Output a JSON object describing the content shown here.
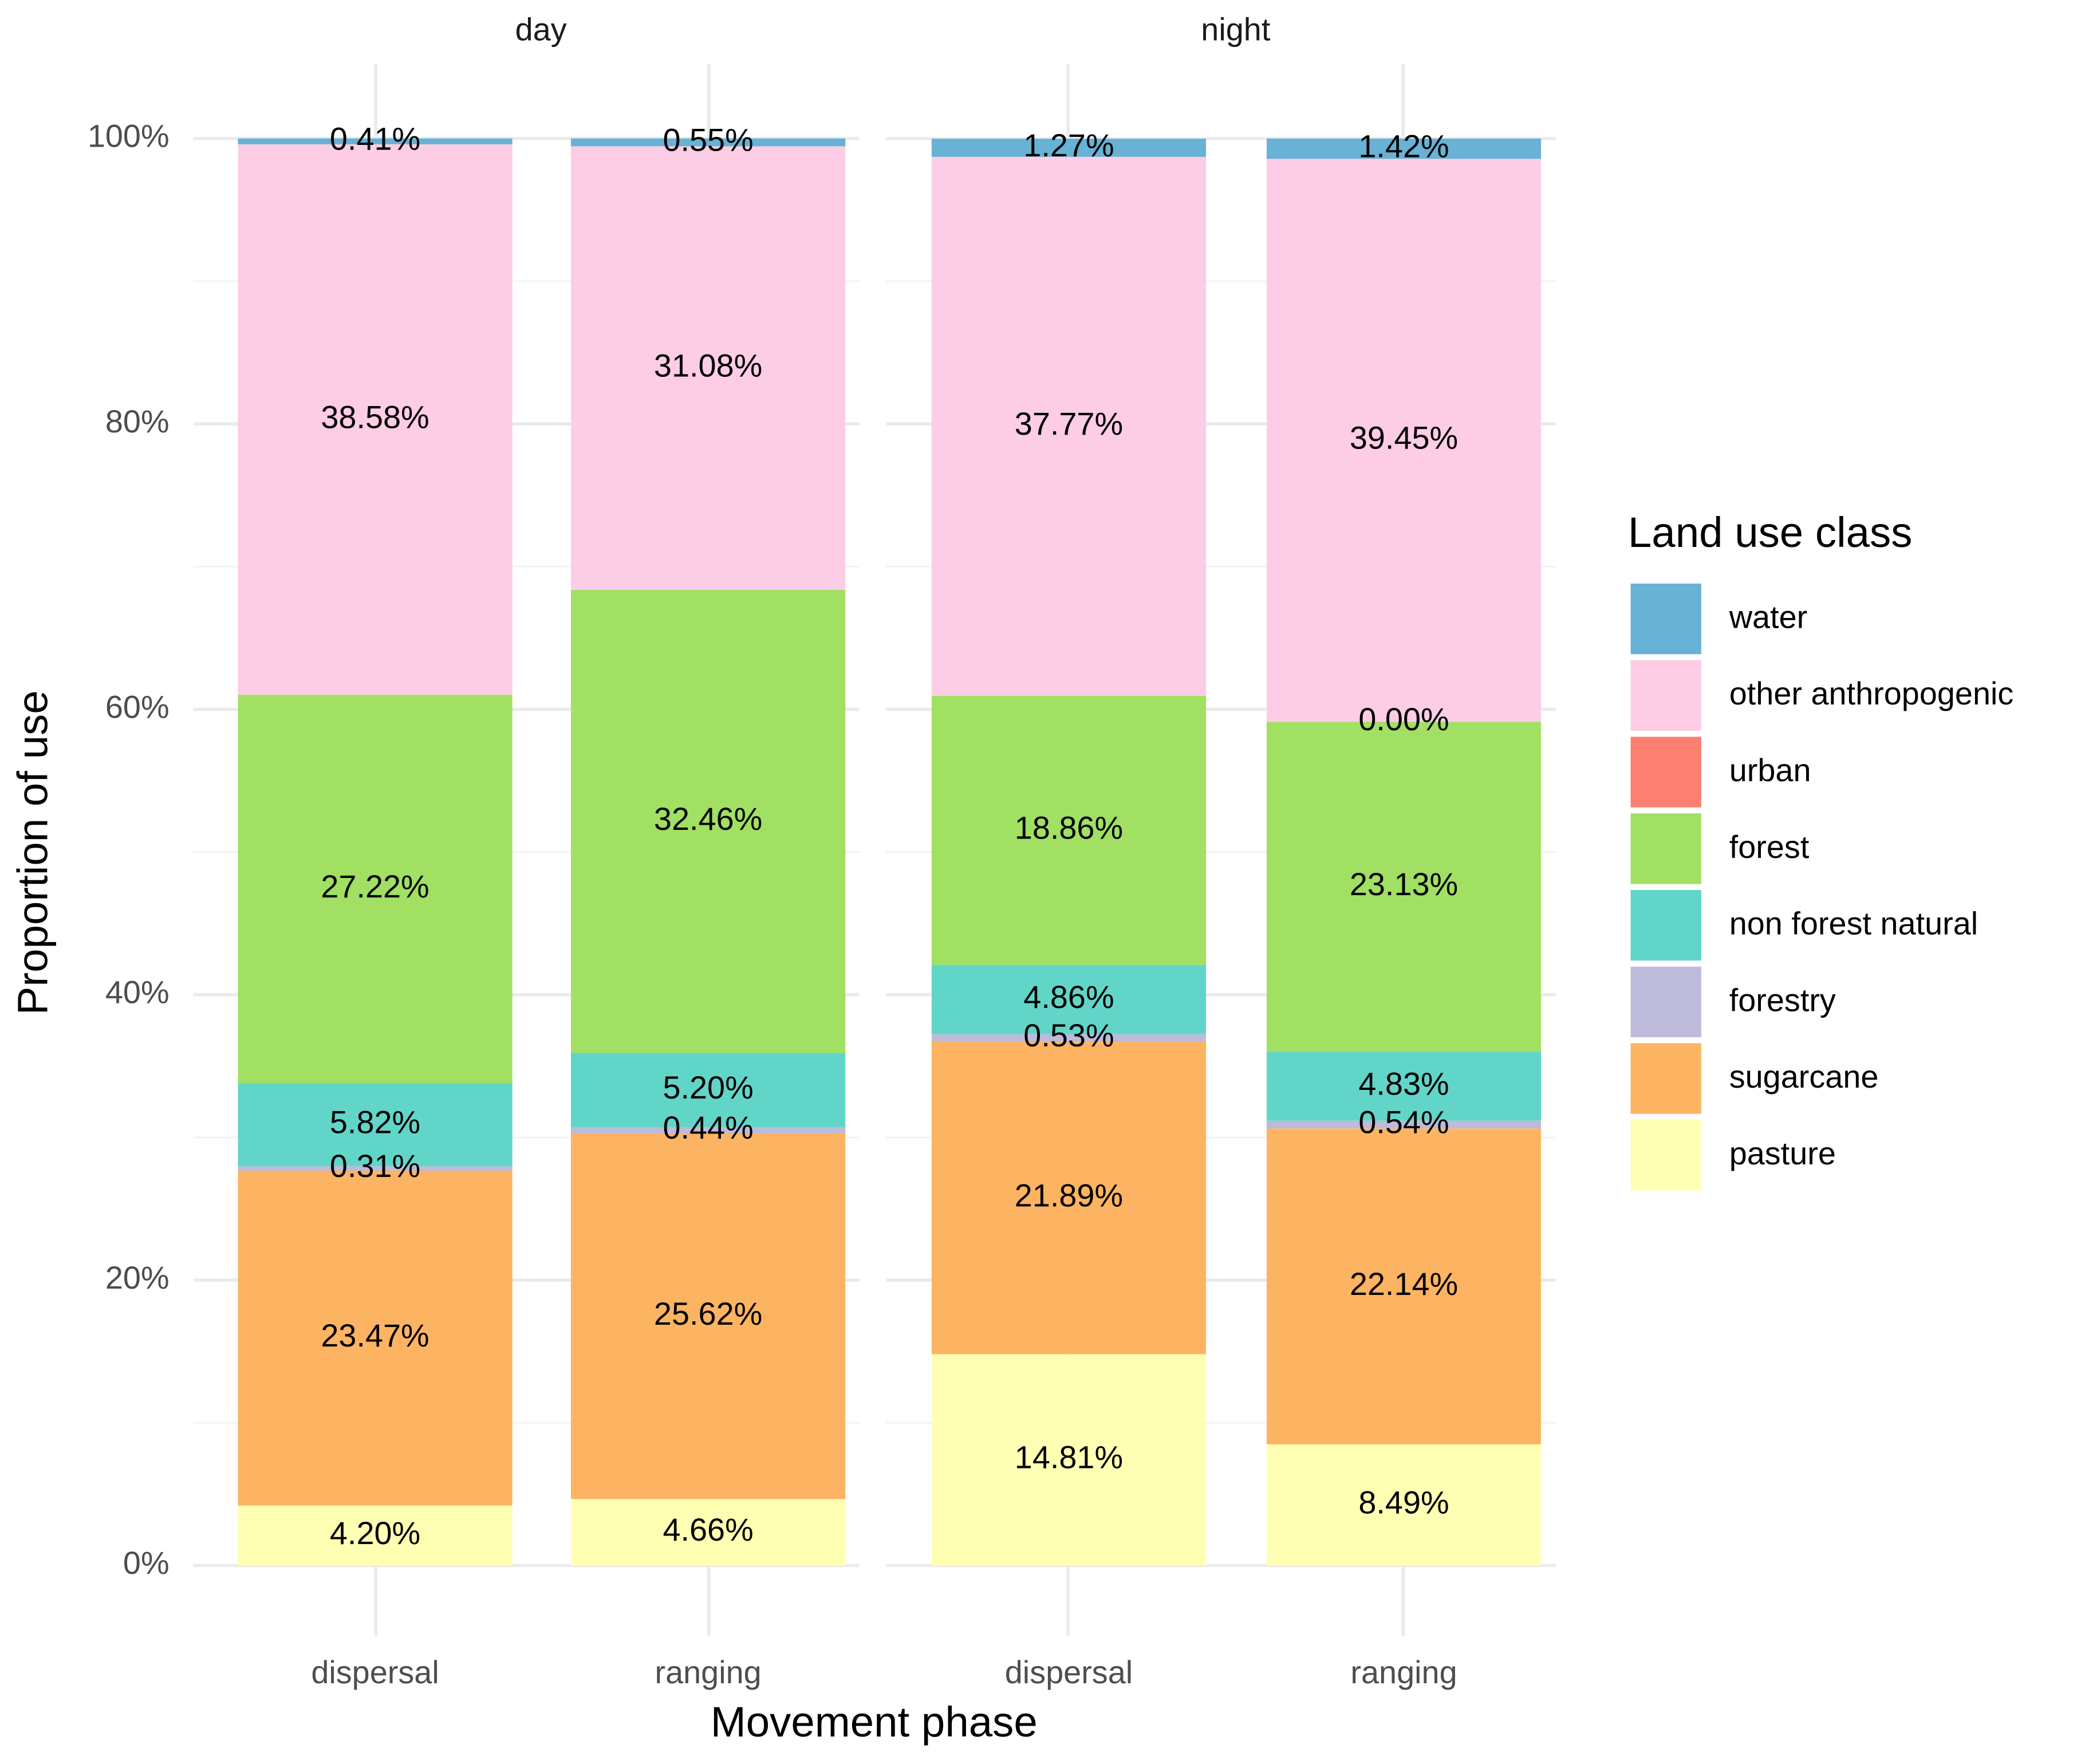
{
  "chart_data": {
    "type": "stacked-bar",
    "xlabel": "Movement phase",
    "ylabel": "Proportion of use",
    "legend_title": "Land use class",
    "ylim": [
      0,
      100
    ],
    "yticks": [
      {
        "value": 0,
        "label": "0%"
      },
      {
        "value": 20,
        "label": "20%"
      },
      {
        "value": 40,
        "label": "40%"
      },
      {
        "value": 60,
        "label": "60%"
      },
      {
        "value": 80,
        "label": "80%"
      },
      {
        "value": 100,
        "label": "100%"
      }
    ],
    "minor_yticks": [
      10,
      30,
      50,
      70,
      90
    ],
    "grid": true,
    "facets": [
      {
        "title": "day",
        "categories": [
          "dispersal",
          "ranging"
        ],
        "series": [
          {
            "name": "pasture",
            "color": "#ffffb3",
            "values": [
              4.2,
              4.66
            ],
            "value_labels": [
              "4.20%",
              "4.66%"
            ]
          },
          {
            "name": "sugarcane",
            "color": "#fdb462",
            "values": [
              23.47,
              25.62
            ],
            "value_labels": [
              "23.47%",
              "25.62%"
            ]
          },
          {
            "name": "forestry",
            "color": "#bebada",
            "values": [
              0.31,
              0.44
            ],
            "value_labels": [
              "0.31%",
              "0.44%"
            ]
          },
          {
            "name": "non forest natural",
            "color": "#62d5c9",
            "values": [
              5.82,
              5.2
            ],
            "value_labels": [
              "5.82%",
              "5.20%"
            ]
          },
          {
            "name": "forest",
            "color": "#a1e063",
            "values": [
              27.22,
              32.46
            ],
            "value_labels": [
              "27.22%",
              "32.46%"
            ]
          },
          {
            "name": "urban",
            "color": "#fb8072",
            "values": [
              null,
              null
            ],
            "value_labels": [
              null,
              null
            ]
          },
          {
            "name": "other anthropogenic",
            "color": "#fccde5",
            "values": [
              38.58,
              31.08
            ],
            "value_labels": [
              "38.58%",
              "31.08%"
            ]
          },
          {
            "name": "water",
            "color": "#67b2d5",
            "values": [
              0.41,
              0.55
            ],
            "value_labels": [
              "0.41%",
              "0.55%"
            ]
          }
        ]
      },
      {
        "title": "night",
        "categories": [
          "dispersal",
          "ranging"
        ],
        "series": [
          {
            "name": "pasture",
            "color": "#ffffb3",
            "values": [
              14.81,
              8.49
            ],
            "value_labels": [
              "14.81%",
              "8.49%"
            ]
          },
          {
            "name": "sugarcane",
            "color": "#fdb462",
            "values": [
              21.89,
              22.14
            ],
            "value_labels": [
              "21.89%",
              "22.14%"
            ]
          },
          {
            "name": "forestry",
            "color": "#bebada",
            "values": [
              0.53,
              0.54
            ],
            "value_labels": [
              "0.53%",
              "0.54%"
            ]
          },
          {
            "name": "non forest natural",
            "color": "#62d5c9",
            "values": [
              4.86,
              4.83
            ],
            "value_labels": [
              "4.86%",
              "4.83%"
            ]
          },
          {
            "name": "forest",
            "color": "#a1e063",
            "values": [
              18.86,
              23.13
            ],
            "value_labels": [
              "18.86%",
              "23.13%"
            ]
          },
          {
            "name": "urban",
            "color": "#fb8072",
            "values": [
              null,
              0.0
            ],
            "value_labels": [
              null,
              "0.00%"
            ]
          },
          {
            "name": "other anthropogenic",
            "color": "#fccde5",
            "values": [
              37.77,
              39.45
            ],
            "value_labels": [
              "37.77%",
              "39.45%"
            ]
          },
          {
            "name": "water",
            "color": "#67b2d5",
            "values": [
              1.27,
              1.42
            ],
            "value_labels": [
              "1.27%",
              "1.42%"
            ]
          }
        ]
      }
    ]
  }
}
